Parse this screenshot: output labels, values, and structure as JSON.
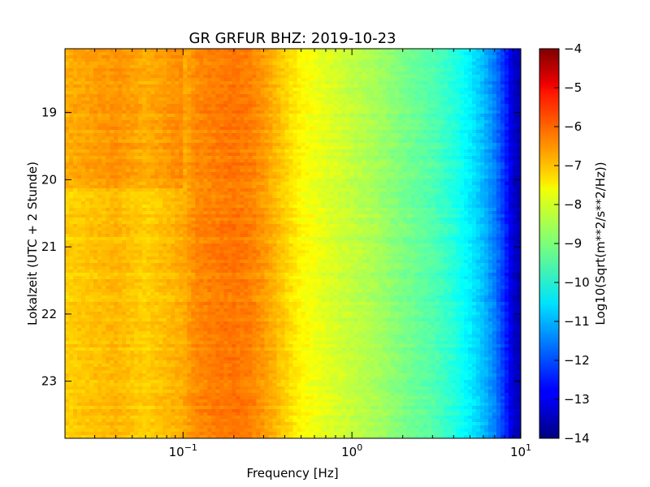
{
  "chart_data": {
    "type": "heatmap",
    "title": "GR GRFUR BHZ: 2019-10-23",
    "xlabel": "Frequency [Hz]",
    "ylabel": "Lokalzeit (UTC + 2 Stunde)",
    "x_scale": "log",
    "xlim": [
      0.02,
      10
    ],
    "x_ticks": [
      {
        "value": 0.1,
        "base": "10",
        "exp": "−1"
      },
      {
        "value": 1,
        "base": "10",
        "exp": "0"
      },
      {
        "value": 10,
        "base": "10",
        "exp": "1"
      }
    ],
    "ylim": [
      18.05,
      23.85
    ],
    "y_inverted": true,
    "y_ticks": [
      {
        "value": 19,
        "label": "19"
      },
      {
        "value": 20,
        "label": "20"
      },
      {
        "value": 21,
        "label": "21"
      },
      {
        "value": 22,
        "label": "22"
      },
      {
        "value": 23,
        "label": "23"
      }
    ],
    "colorbar": {
      "label": "Log10(Sqrt(m**2/s**2/Hz))",
      "colormap": "jet",
      "range": [
        -14,
        -4
      ],
      "ticks": [
        {
          "value": -4,
          "label": "−4"
        },
        {
          "value": -5,
          "label": "−5"
        },
        {
          "value": -6,
          "label": "−6"
        },
        {
          "value": -7,
          "label": "−7"
        },
        {
          "value": -8,
          "label": "−8"
        },
        {
          "value": -9,
          "label": "−9"
        },
        {
          "value": -10,
          "label": "−10"
        },
        {
          "value": -11,
          "label": "−11"
        },
        {
          "value": -12,
          "label": "−12"
        },
        {
          "value": -13,
          "label": "−13"
        },
        {
          "value": -14,
          "label": "−14"
        }
      ]
    },
    "spectrum_profile": {
      "frequency_hz": [
        0.02,
        0.04,
        0.06,
        0.08,
        0.1,
        0.12,
        0.15,
        0.2,
        0.25,
        0.3,
        0.4,
        0.5,
        0.7,
        1,
        1.5,
        2,
        3,
        4,
        5,
        6,
        7,
        8,
        9,
        10
      ],
      "log10_psd": [
        -7.3,
        -7.05,
        -7.3,
        -7.1,
        -6.95,
        -6.6,
        -6.5,
        -6.4,
        -6.5,
        -6.75,
        -7.3,
        -7.7,
        -8.05,
        -8.35,
        -8.7,
        -9.05,
        -9.45,
        -9.9,
        -10.4,
        -10.9,
        -11.5,
        -12.3,
        -13.2,
        -13.6
      ]
    }
  }
}
